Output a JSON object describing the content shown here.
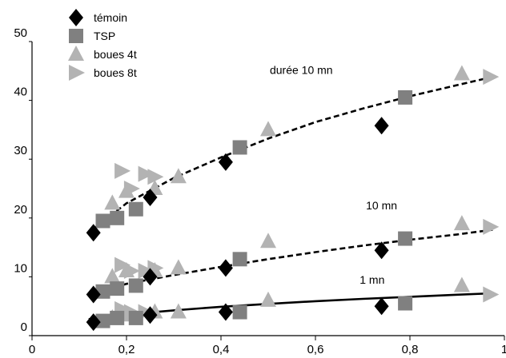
{
  "chart_data": {
    "type": "scatter",
    "title": "",
    "xlabel": "",
    "ylabel": "",
    "xlim": [
      0,
      1
    ],
    "ylim": [
      0,
      50
    ],
    "x_ticks": [
      0,
      0.2,
      0.4,
      0.6,
      0.8,
      1
    ],
    "x_tick_labels": [
      "0",
      "0,2",
      "0,4",
      "0,6",
      "0,8",
      "1"
    ],
    "y_ticks": [
      0,
      10,
      20,
      30,
      40,
      50
    ],
    "y_tick_labels": [
      "0",
      "10",
      "20",
      "30",
      "40",
      "50"
    ],
    "grid": false,
    "legend_position": "top-left",
    "series": [
      {
        "name": "témoin",
        "marker": "diamond",
        "color": "#000000",
        "points": [
          [
            0.13,
            17.5
          ],
          [
            0.25,
            23.5
          ],
          [
            0.41,
            29.5
          ],
          [
            0.74,
            35.7
          ],
          [
            0.13,
            7
          ],
          [
            0.25,
            10
          ],
          [
            0.41,
            11.5
          ],
          [
            0.74,
            14.5
          ],
          [
            0.13,
            2.3
          ],
          [
            0.25,
            3.5
          ],
          [
            0.41,
            4
          ],
          [
            0.74,
            5
          ]
        ]
      },
      {
        "name": "TSP",
        "marker": "square",
        "color": "#808080",
        "points": [
          [
            0.15,
            19.5
          ],
          [
            0.18,
            20
          ],
          [
            0.22,
            21.5
          ],
          [
            0.44,
            32
          ],
          [
            0.79,
            40.5
          ],
          [
            0.15,
            7.5
          ],
          [
            0.18,
            8
          ],
          [
            0.22,
            8.5
          ],
          [
            0.44,
            13
          ],
          [
            0.79,
            16.5
          ],
          [
            0.15,
            2.5
          ],
          [
            0.18,
            3
          ],
          [
            0.22,
            3
          ],
          [
            0.44,
            4
          ],
          [
            0.79,
            5.5
          ]
        ]
      },
      {
        "name": "boues 4t",
        "marker": "triangle-up",
        "color": "#b3b3b3",
        "points": [
          [
            0.17,
            22.5
          ],
          [
            0.2,
            24.5
          ],
          [
            0.26,
            25
          ],
          [
            0.31,
            27
          ],
          [
            0.5,
            35
          ],
          [
            0.91,
            44.5
          ],
          [
            0.17,
            10
          ],
          [
            0.2,
            11
          ],
          [
            0.26,
            11
          ],
          [
            0.31,
            11.5
          ],
          [
            0.5,
            16
          ],
          [
            0.91,
            19
          ],
          [
            0.17,
            3
          ],
          [
            0.2,
            3.5
          ],
          [
            0.26,
            4
          ],
          [
            0.31,
            4
          ],
          [
            0.5,
            6
          ],
          [
            0.91,
            8.5
          ]
        ]
      },
      {
        "name": "boues 8t",
        "marker": "triangle-right",
        "color": "#b3b3b3",
        "points": [
          [
            0.19,
            28
          ],
          [
            0.21,
            25
          ],
          [
            0.24,
            27.5
          ],
          [
            0.26,
            27
          ],
          [
            0.97,
            44
          ],
          [
            0.19,
            12
          ],
          [
            0.21,
            11
          ],
          [
            0.24,
            11
          ],
          [
            0.26,
            11.5
          ],
          [
            0.97,
            18.5
          ],
          [
            0.19,
            4.5
          ],
          [
            0.21,
            4
          ],
          [
            0.24,
            4
          ],
          [
            0.97,
            7
          ]
        ]
      }
    ],
    "curves": [
      {
        "label": "durée 10 mn",
        "style": "dashed",
        "color": "#000000",
        "x": [
          0.12,
          0.2,
          0.3,
          0.4,
          0.5,
          0.6,
          0.7,
          0.8,
          0.9,
          0.975
        ],
        "y": [
          17.5,
          22.5,
          26.8,
          30.3,
          33.5,
          36.3,
          38.6,
          40.7,
          42.6,
          44
        ]
      },
      {
        "label": "10 mn",
        "style": "dashed",
        "color": "#000000",
        "x": [
          0.12,
          0.2,
          0.3,
          0.4,
          0.5,
          0.6,
          0.7,
          0.8,
          0.9,
          0.975
        ],
        "y": [
          7,
          8.8,
          10.3,
          11.7,
          13,
          14.2,
          15.3,
          16.3,
          17.2,
          18
        ]
      },
      {
        "label": "1 mn",
        "style": "solid",
        "color": "#000000",
        "x": [
          0.12,
          0.2,
          0.3,
          0.4,
          0.5,
          0.6,
          0.7,
          0.8,
          0.9,
          0.975
        ],
        "y": [
          2.8,
          3.6,
          4.3,
          4.9,
          5.4,
          5.85,
          6.25,
          6.6,
          6.95,
          7.2
        ]
      }
    ],
    "annotations": [
      {
        "text": "durée 10 mn",
        "near": "upper curve"
      },
      {
        "text": "10 mn",
        "near": "middle curve"
      },
      {
        "text": "1 mn",
        "near": "lower curve"
      }
    ]
  }
}
